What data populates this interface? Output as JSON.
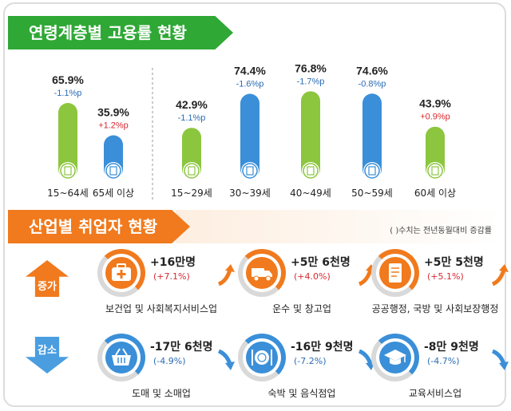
{
  "section1": {
    "title": "연령계층별 고용률 현황"
  },
  "chart_data": {
    "type": "bar",
    "categories": [
      "15~64세",
      "65세 이상",
      "15~29세",
      "30~39세",
      "40~49세",
      "50~59세",
      "60세 이상"
    ],
    "values": [
      65.9,
      35.9,
      42.9,
      74.4,
      76.8,
      74.6,
      43.9
    ],
    "value_labels": [
      "65.9%",
      "35.9%",
      "42.9%",
      "74.4%",
      "76.8%",
      "74.6%",
      "43.9%"
    ],
    "changes": [
      "-1.1%p",
      "+1.2%p",
      "-1.1%p",
      "-1.6%p",
      "-1.7%p",
      "-0.8%p",
      "+0.9%p"
    ],
    "bar_colors": [
      "#8cc63f",
      "#3a8fd8",
      "#8cc63f",
      "#3a8fd8",
      "#8cc63f",
      "#3a8fd8",
      "#8cc63f"
    ],
    "change_colors": {
      "negative": "#2b6cb5",
      "positive": "#d8292f"
    },
    "ylim": [
      0,
      100
    ]
  },
  "section2": {
    "title": "산업별 취업자 현황",
    "note": "( )수치는 전년동월대비 증감률",
    "increase_label": "증가",
    "decrease_label": "감소",
    "increase": [
      {
        "amount": "+16만명",
        "pct": "(+7.1%)",
        "label": "보건업 및 사회복지서비스업",
        "icon": "first-aid-kit-icon"
      },
      {
        "amount": "+5만 6천명",
        "pct": "(+4.0%)",
        "label": "운수 및 창고업",
        "icon": "truck-icon"
      },
      {
        "amount": "+5만 5천명",
        "pct": "(+5.1%)",
        "label": "공공행정, 국방 및 사회보장행정",
        "icon": "scroll-icon"
      }
    ],
    "decrease": [
      {
        "amount": "-17만 6천명",
        "pct": "(-4.9%)",
        "label": "도매 및 소매업",
        "icon": "shopping-basket-icon"
      },
      {
        "amount": "-16만 9천명",
        "pct": "(-7.2%)",
        "label": "숙박 및 음식점업",
        "icon": "plate-cutlery-icon"
      },
      {
        "amount": "-8만 9천명",
        "pct": "(-4.7%)",
        "label": "교육서비스업",
        "icon": "graduation-cap-icon"
      }
    ],
    "colors": {
      "increase": "#f07a1d",
      "decrease": "#3a8fd8"
    }
  }
}
